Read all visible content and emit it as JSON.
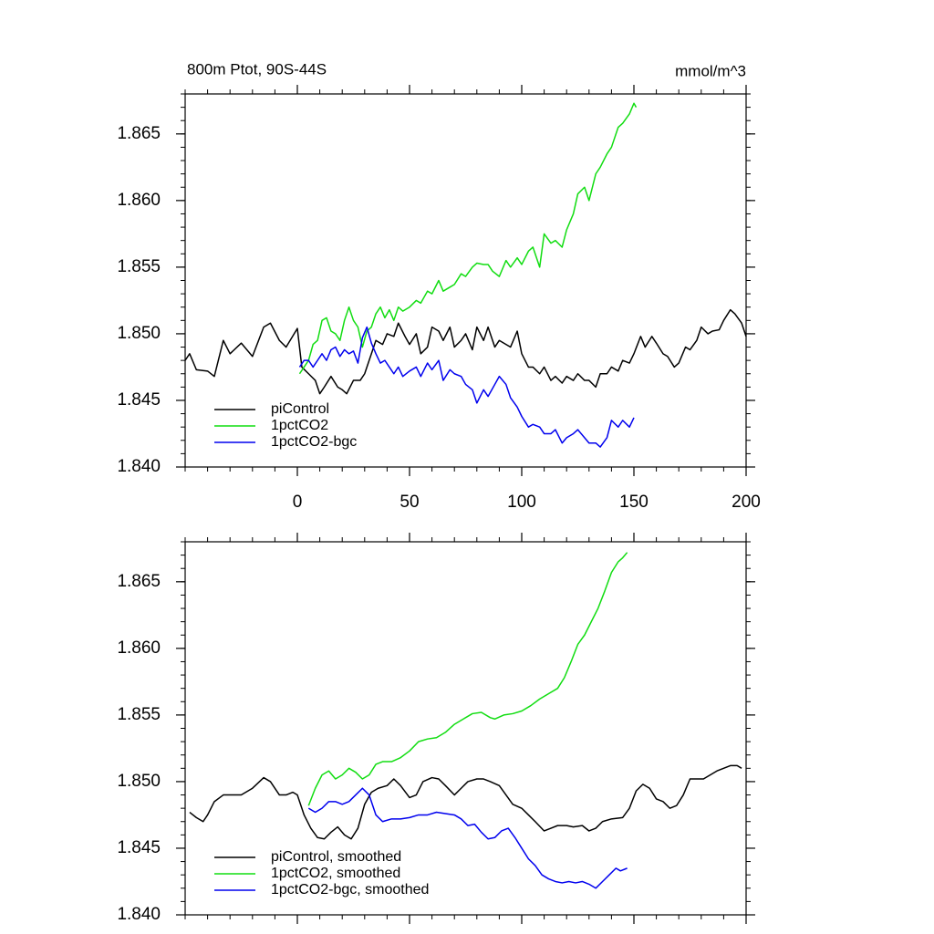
{
  "chart_data": [
    {
      "type": "line",
      "title": "800m Ptot, 90S-44S",
      "units": "mmol/m^3",
      "xlim": [
        -50,
        200
      ],
      "xticks": [
        0,
        50,
        100,
        150,
        200
      ],
      "show_xtick_labels": true,
      "ylim": [
        1.84,
        1.868
      ],
      "yticks": [
        {
          "value": 1.84,
          "label": "1.840"
        },
        {
          "value": 1.845,
          "label": "1.845"
        },
        {
          "value": 1.85,
          "label": "1.850"
        },
        {
          "value": 1.855,
          "label": "1.855"
        },
        {
          "value": 1.86,
          "label": "1.860"
        },
        {
          "value": 1.865,
          "label": "1.865"
        }
      ],
      "legend": "lower left",
      "series": [
        {
          "name": "piControl",
          "color": "#000000",
          "x": [
            -50,
            -48,
            -45,
            -40,
            -37,
            -33,
            -30,
            -25,
            -20,
            -15,
            -12,
            -8,
            -5,
            0,
            2,
            5,
            8,
            10,
            12,
            15,
            18,
            20,
            22,
            25,
            28,
            30,
            33,
            35,
            38,
            40,
            43,
            45,
            48,
            50,
            53,
            55,
            58,
            60,
            63,
            65,
            68,
            70,
            73,
            75,
            78,
            80,
            83,
            85,
            88,
            90,
            93,
            95,
            98,
            100,
            103,
            105,
            108,
            110,
            113,
            115,
            118,
            120,
            123,
            125,
            128,
            130,
            133,
            135,
            138,
            140,
            143,
            145,
            148,
            150,
            153,
            155,
            158,
            160,
            163,
            165,
            168,
            170,
            173,
            175,
            178,
            180,
            183,
            185,
            188,
            190,
            193,
            195,
            198,
            200
          ],
          "values": [
            1.848,
            1.8485,
            1.8473,
            1.8472,
            1.8468,
            1.8495,
            1.8485,
            1.8493,
            1.8483,
            1.8505,
            1.8508,
            1.8495,
            1.849,
            1.8504,
            1.8475,
            1.847,
            1.8465,
            1.8455,
            1.846,
            1.8468,
            1.846,
            1.8458,
            1.8455,
            1.8465,
            1.8465,
            1.847,
            1.8485,
            1.8495,
            1.8492,
            1.85,
            1.8498,
            1.8508,
            1.8498,
            1.8492,
            1.85,
            1.8485,
            1.849,
            1.8505,
            1.8502,
            1.8495,
            1.8505,
            1.849,
            1.8495,
            1.85,
            1.8488,
            1.8505,
            1.8495,
            1.8505,
            1.849,
            1.8495,
            1.8492,
            1.849,
            1.8502,
            1.8485,
            1.8475,
            1.8475,
            1.847,
            1.8475,
            1.8465,
            1.8468,
            1.8463,
            1.8468,
            1.8465,
            1.847,
            1.8465,
            1.8465,
            1.846,
            1.847,
            1.847,
            1.8475,
            1.8472,
            1.848,
            1.8478,
            1.8485,
            1.8498,
            1.849,
            1.8498,
            1.8493,
            1.8485,
            1.8483,
            1.8475,
            1.8478,
            1.849,
            1.8488,
            1.8495,
            1.8505,
            1.85,
            1.8502,
            1.8503,
            1.851,
            1.8518,
            1.8515,
            1.8508,
            1.8498
          ]
        },
        {
          "name": "1pctCO2",
          "color": "#11dd11",
          "x": [
            1,
            3,
            5,
            7,
            9,
            11,
            13,
            15,
            17,
            19,
            21,
            23,
            25,
            27,
            29,
            31,
            33,
            35,
            37,
            39,
            41,
            43,
            45,
            47,
            50,
            53,
            55,
            58,
            60,
            63,
            65,
            68,
            70,
            73,
            75,
            78,
            80,
            83,
            85,
            87,
            90,
            93,
            95,
            98,
            100,
            103,
            105,
            108,
            110,
            113,
            115,
            118,
            120,
            123,
            125,
            128,
            130,
            133,
            135,
            138,
            140,
            143,
            145,
            148,
            150,
            151
          ],
          "values": [
            1.847,
            1.8475,
            1.848,
            1.8492,
            1.8495,
            1.851,
            1.8512,
            1.8502,
            1.85,
            1.8495,
            1.851,
            1.852,
            1.851,
            1.8505,
            1.849,
            1.8502,
            1.8505,
            1.8515,
            1.852,
            1.8512,
            1.8518,
            1.851,
            1.852,
            1.8517,
            1.852,
            1.8525,
            1.8523,
            1.8532,
            1.853,
            1.854,
            1.8532,
            1.8535,
            1.8537,
            1.8545,
            1.8543,
            1.855,
            1.8553,
            1.8552,
            1.8552,
            1.8547,
            1.8543,
            1.8555,
            1.855,
            1.8557,
            1.8552,
            1.8562,
            1.8565,
            1.855,
            1.8575,
            1.8568,
            1.857,
            1.8565,
            1.8578,
            1.859,
            1.8605,
            1.861,
            1.86,
            1.862,
            1.8625,
            1.8635,
            1.864,
            1.8655,
            1.8658,
            1.8665,
            1.8673,
            1.867
          ]
        },
        {
          "name": "1pctCO2-bgc",
          "color": "#0000ee",
          "x": [
            1,
            3,
            5,
            7,
            9,
            11,
            13,
            15,
            17,
            19,
            21,
            23,
            25,
            27,
            29,
            31,
            33,
            35,
            37,
            39,
            41,
            43,
            45,
            47,
            50,
            53,
            55,
            58,
            60,
            63,
            65,
            68,
            70,
            73,
            75,
            78,
            80,
            83,
            85,
            88,
            90,
            93,
            95,
            98,
            100,
            103,
            105,
            108,
            110,
            113,
            115,
            118,
            120,
            123,
            125,
            128,
            130,
            133,
            135,
            138,
            140,
            143,
            145,
            148,
            150
          ],
          "values": [
            1.8475,
            1.848,
            1.848,
            1.8475,
            1.848,
            1.8485,
            1.848,
            1.8488,
            1.849,
            1.8483,
            1.8488,
            1.8485,
            1.8487,
            1.8478,
            1.8497,
            1.8505,
            1.8493,
            1.8485,
            1.8478,
            1.848,
            1.8475,
            1.847,
            1.8475,
            1.8468,
            1.8472,
            1.8475,
            1.8468,
            1.8478,
            1.8473,
            1.848,
            1.8465,
            1.8473,
            1.847,
            1.8468,
            1.8462,
            1.8458,
            1.8448,
            1.8458,
            1.8453,
            1.8462,
            1.8468,
            1.8462,
            1.8452,
            1.8445,
            1.8438,
            1.843,
            1.8432,
            1.843,
            1.8425,
            1.8425,
            1.8428,
            1.8418,
            1.8422,
            1.8425,
            1.8428,
            1.8422,
            1.8418,
            1.8418,
            1.8415,
            1.8422,
            1.8435,
            1.843,
            1.8435,
            1.843,
            1.8437
          ]
        }
      ]
    },
    {
      "type": "line",
      "xlim": [
        -50,
        200
      ],
      "xticks": [
        0,
        50,
        100,
        150,
        200
      ],
      "show_xtick_labels": false,
      "ylim": [
        1.84,
        1.868
      ],
      "yticks": [
        {
          "value": 1.84,
          "label": "1.840"
        },
        {
          "value": 1.845,
          "label": "1.845"
        },
        {
          "value": 1.85,
          "label": "1.850"
        },
        {
          "value": 1.855,
          "label": "1.855"
        },
        {
          "value": 1.86,
          "label": "1.860"
        },
        {
          "value": 1.865,
          "label": "1.865"
        }
      ],
      "legend": "lower left",
      "series": [
        {
          "name": "piControl, smoothed",
          "color": "#000000",
          "x": [
            -48,
            -45,
            -42,
            -40,
            -37,
            -33,
            -30,
            -25,
            -20,
            -15,
            -12,
            -8,
            -5,
            -2,
            0,
            3,
            6,
            9,
            12,
            15,
            18,
            21,
            24,
            27,
            30,
            33,
            36,
            40,
            43,
            46,
            50,
            53,
            56,
            60,
            63,
            66,
            70,
            73,
            76,
            80,
            83,
            86,
            90,
            93,
            96,
            100,
            103,
            106,
            110,
            113,
            116,
            120,
            123,
            127,
            130,
            133,
            136,
            140,
            145,
            148,
            151,
            154,
            157,
            160,
            163,
            166,
            169,
            172,
            175,
            178,
            181,
            184,
            187,
            190,
            193,
            196,
            198
          ],
          "values": [
            1.8477,
            1.8473,
            1.847,
            1.8475,
            1.8485,
            1.849,
            1.849,
            1.849,
            1.8495,
            1.8503,
            1.85,
            1.849,
            1.849,
            1.8492,
            1.849,
            1.8475,
            1.8465,
            1.8458,
            1.8457,
            1.8462,
            1.8466,
            1.846,
            1.8457,
            1.8465,
            1.8483,
            1.8492,
            1.8495,
            1.8497,
            1.8502,
            1.8497,
            1.8488,
            1.849,
            1.85,
            1.8503,
            1.8502,
            1.8497,
            1.849,
            1.8495,
            1.85,
            1.8502,
            1.8502,
            1.85,
            1.8497,
            1.849,
            1.8483,
            1.848,
            1.8475,
            1.847,
            1.8463,
            1.8465,
            1.8467,
            1.8467,
            1.8466,
            1.8467,
            1.8463,
            1.8465,
            1.847,
            1.8472,
            1.8473,
            1.848,
            1.8493,
            1.8498,
            1.8495,
            1.8487,
            1.8485,
            1.848,
            1.8482,
            1.849,
            1.8502,
            1.8502,
            1.8502,
            1.8505,
            1.8508,
            1.851,
            1.8512,
            1.8512,
            1.851
          ]
        },
        {
          "name": "1pctCO2, smoothed",
          "color": "#11dd11",
          "x": [
            5,
            8,
            11,
            14,
            17,
            20,
            23,
            26,
            29,
            32,
            35,
            38,
            42,
            46,
            50,
            54,
            58,
            62,
            66,
            70,
            74,
            78,
            82,
            86,
            88,
            92,
            96,
            100,
            104,
            108,
            112,
            116,
            119,
            122,
            125,
            128,
            131,
            134,
            137,
            140,
            143,
            145,
            147
          ],
          "values": [
            1.8482,
            1.8495,
            1.8505,
            1.8508,
            1.8502,
            1.8505,
            1.851,
            1.8507,
            1.8502,
            1.8505,
            1.8513,
            1.8515,
            1.8515,
            1.8518,
            1.8523,
            1.853,
            1.8532,
            1.8533,
            1.8537,
            1.8543,
            1.8547,
            1.8551,
            1.8552,
            1.8548,
            1.8547,
            1.855,
            1.8551,
            1.8553,
            1.8557,
            1.8562,
            1.8566,
            1.857,
            1.8578,
            1.859,
            1.8603,
            1.861,
            1.862,
            1.863,
            1.8643,
            1.8657,
            1.8665,
            1.8668,
            1.8672
          ]
        },
        {
          "name": "1pctCO2-bgc, smoothed",
          "color": "#0000ee",
          "x": [
            5,
            8,
            11,
            14,
            17,
            20,
            23,
            26,
            29,
            32,
            35,
            38,
            42,
            46,
            50,
            54,
            58,
            62,
            66,
            70,
            73,
            76,
            79,
            82,
            85,
            88,
            91,
            94,
            97,
            100,
            103,
            106,
            109,
            112,
            115,
            118,
            121,
            124,
            127,
            130,
            133,
            136,
            139,
            142,
            144,
            147
          ],
          "values": [
            1.848,
            1.8477,
            1.848,
            1.8485,
            1.8485,
            1.8483,
            1.8485,
            1.849,
            1.8495,
            1.849,
            1.8475,
            1.847,
            1.8472,
            1.8472,
            1.8473,
            1.8475,
            1.8475,
            1.8477,
            1.8476,
            1.8475,
            1.8472,
            1.8467,
            1.8468,
            1.8462,
            1.8457,
            1.8458,
            1.8463,
            1.8465,
            1.8458,
            1.845,
            1.8442,
            1.8437,
            1.843,
            1.8427,
            1.8425,
            1.8424,
            1.8425,
            1.8424,
            1.8425,
            1.8423,
            1.842,
            1.8425,
            1.843,
            1.8435,
            1.8433,
            1.8435
          ]
        }
      ]
    }
  ]
}
